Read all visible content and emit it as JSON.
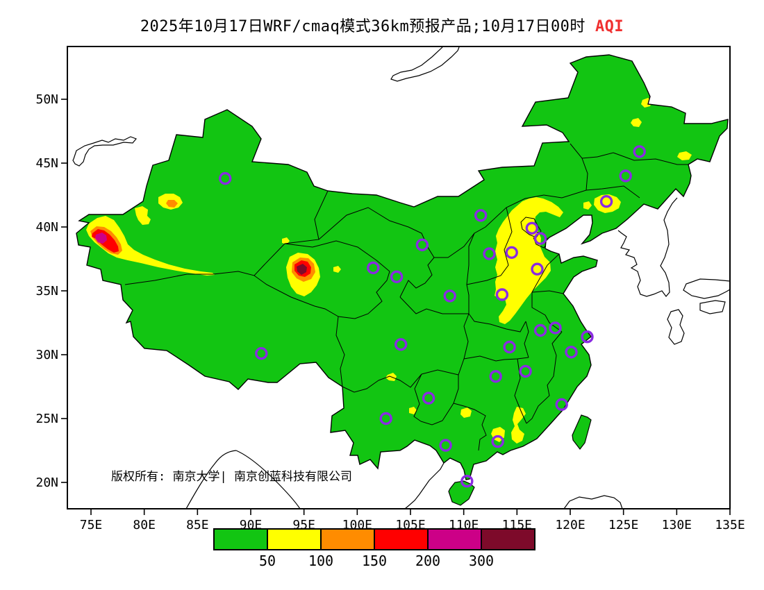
{
  "title": {
    "main": "2025年10月17日WRF/cmaq模式36km预报产品;10月17日00时",
    "highlight": "AQI",
    "highlight_color": "#f03030"
  },
  "copyright": "版权所有: 南京大学| 南京创蓝科技有限公司",
  "axes": {
    "x_ticks": [
      {
        "label": "75E",
        "lon": 75
      },
      {
        "label": "80E",
        "lon": 80
      },
      {
        "label": "85E",
        "lon": 85
      },
      {
        "label": "90E",
        "lon": 90
      },
      {
        "label": "95E",
        "lon": 95
      },
      {
        "label": "100E",
        "lon": 100
      },
      {
        "label": "105E",
        "lon": 105
      },
      {
        "label": "110E",
        "lon": 110
      },
      {
        "label": "115E",
        "lon": 115
      },
      {
        "label": "120E",
        "lon": 120
      },
      {
        "label": "125E",
        "lon": 125
      },
      {
        "label": "130E",
        "lon": 130
      },
      {
        "label": "135E",
        "lon": 135
      }
    ],
    "y_ticks": [
      {
        "label": "20N",
        "lat": 20
      },
      {
        "label": "25N",
        "lat": 25
      },
      {
        "label": "30N",
        "lat": 30
      },
      {
        "label": "35N",
        "lat": 35
      },
      {
        "label": "40N",
        "lat": 40
      },
      {
        "label": "45N",
        "lat": 45
      },
      {
        "label": "50N",
        "lat": 50
      }
    ]
  },
  "legend": {
    "labels": [
      "50",
      "100",
      "150",
      "200",
      "300"
    ],
    "colors": [
      "#12c512",
      "#ffff00",
      "#ff8c00",
      "#ff0000",
      "#cc0087",
      "#7d0a2a"
    ]
  },
  "colors": {
    "land": "#12c512",
    "aqi_moderate": "#ffff00",
    "aqi_unhealthy_sensitive": "#ff8c00",
    "aqi_unhealthy": "#ff0000",
    "aqi_very_unhealthy": "#cc0087",
    "aqi_hazardous": "#7d0a2a",
    "city_marker": "#8a2be2",
    "coastline": "#000000"
  },
  "markers": [
    [
      87.6,
      43.8
    ],
    [
      126.5,
      45.9
    ],
    [
      125.2,
      44.0
    ],
    [
      123.4,
      42.0
    ],
    [
      111.6,
      40.9
    ],
    [
      116.4,
      39.9
    ],
    [
      117.2,
      39.1
    ],
    [
      114.5,
      38.0
    ],
    [
      112.4,
      37.9
    ],
    [
      116.9,
      36.7
    ],
    [
      106.1,
      38.6
    ],
    [
      101.5,
      36.8
    ],
    [
      103.7,
      36.1
    ],
    [
      113.6,
      34.7
    ],
    [
      108.7,
      34.6
    ],
    [
      117.2,
      31.9
    ],
    [
      118.6,
      32.1
    ],
    [
      121.6,
      31.4
    ],
    [
      120.1,
      30.2
    ],
    [
      114.3,
      30.6
    ],
    [
      104.1,
      30.8
    ],
    [
      91.0,
      30.1
    ],
    [
      113.0,
      28.3
    ],
    [
      115.8,
      28.7
    ],
    [
      106.7,
      26.6
    ],
    [
      102.7,
      25.0
    ],
    [
      119.2,
      26.1
    ],
    [
      113.2,
      23.2
    ],
    [
      108.3,
      22.9
    ],
    [
      110.3,
      20.1
    ]
  ]
}
